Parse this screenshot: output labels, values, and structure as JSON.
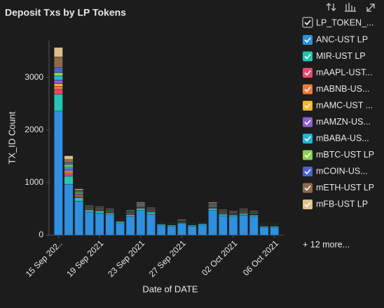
{
  "chart_data": {
    "type": "stacked_bar",
    "title": "Deposit Txs by LP Tokens",
    "x_label": "Date of DATE",
    "y_label": "TX_ID Count",
    "legend_title": "LP_TOKEN_...",
    "legend_more": "+ 12 more...",
    "categories": [
      "15 Sep 202..",
      null,
      null,
      null,
      "19 Sep 2021",
      null,
      null,
      null,
      "23 Sep 2021",
      null,
      null,
      null,
      "27 Sep 2021",
      null,
      null,
      null,
      null,
      "02 Oct 2021",
      null,
      null,
      null,
      "06 Oct 2021"
    ],
    "ylim": [
      0,
      3700
    ],
    "yticks": [
      0,
      1000,
      2000,
      3000
    ],
    "grid": false,
    "legend": "right",
    "series": [
      {
        "name": "ANC-UST LP",
        "color": "#2f8fe0",
        "values": [
          2360,
          970,
          650,
          440,
          420,
          390,
          230,
          360,
          470,
          400,
          190,
          170,
          220,
          170,
          200,
          470,
          370,
          350,
          380,
          350,
          150,
          150
        ]
      },
      {
        "name": "MIR-UST LP",
        "color": "#22c7b0",
        "values": [
          320,
          150,
          60,
          40,
          40,
          30,
          30,
          30,
          40,
          40,
          20,
          20,
          20,
          20,
          20,
          40,
          30,
          30,
          30,
          30,
          20,
          20
        ]
      },
      {
        "name": "mAAPL-UST...",
        "color": "#e84a6a",
        "values": [
          90,
          40,
          20,
          10,
          10,
          10,
          10,
          10,
          10,
          10,
          5,
          5,
          5,
          5,
          5,
          10,
          10,
          10,
          10,
          10,
          5,
          5
        ]
      },
      {
        "name": "mABNB-US...",
        "color": "#f07a3a",
        "values": [
          60,
          30,
          15,
          10,
          10,
          10,
          5,
          10,
          10,
          10,
          5,
          5,
          5,
          5,
          5,
          10,
          10,
          5,
          10,
          5,
          5,
          5
        ]
      },
      {
        "name": "mAMC-UST ...",
        "color": "#f5b52e",
        "values": [
          50,
          30,
          15,
          10,
          10,
          10,
          5,
          10,
          10,
          10,
          5,
          5,
          5,
          5,
          5,
          10,
          10,
          10,
          10,
          5,
          5,
          5
        ]
      },
      {
        "name": "mAMZN-US...",
        "color": "#8f5fcf",
        "values": [
          70,
          40,
          20,
          10,
          10,
          10,
          5,
          10,
          15,
          10,
          5,
          5,
          5,
          5,
          5,
          10,
          10,
          10,
          10,
          10,
          5,
          5
        ]
      },
      {
        "name": "mBABA-US...",
        "color": "#1fb8d6",
        "values": [
          80,
          40,
          20,
          10,
          10,
          10,
          5,
          10,
          15,
          10,
          5,
          5,
          5,
          5,
          5,
          15,
          10,
          10,
          10,
          10,
          5,
          5
        ]
      },
      {
        "name": "mBTC-UST LP",
        "color": "#8fd14f",
        "values": [
          60,
          40,
          20,
          10,
          10,
          10,
          5,
          10,
          15,
          10,
          5,
          5,
          10,
          5,
          5,
          15,
          10,
          10,
          10,
          10,
          5,
          5
        ]
      },
      {
        "name": "mCOIN-US...",
        "color": "#4a62c8",
        "values": [
          100,
          40,
          20,
          10,
          10,
          10,
          5,
          10,
          15,
          10,
          5,
          5,
          10,
          5,
          5,
          15,
          10,
          10,
          10,
          10,
          5,
          5
        ]
      },
      {
        "name": "mETH-UST LP",
        "color": "#8f6a4a",
        "values": [
          200,
          60,
          20,
          10,
          10,
          10,
          5,
          10,
          15,
          10,
          5,
          5,
          10,
          5,
          5,
          15,
          10,
          10,
          10,
          10,
          5,
          5
        ]
      },
      {
        "name": "mFB-UST LP",
        "color": "#d9c28a",
        "values": [
          180,
          70,
          20,
          10,
          10,
          10,
          5,
          10,
          15,
          10,
          5,
          5,
          10,
          5,
          5,
          15,
          10,
          10,
          10,
          10,
          5,
          5
        ]
      }
    ]
  }
}
